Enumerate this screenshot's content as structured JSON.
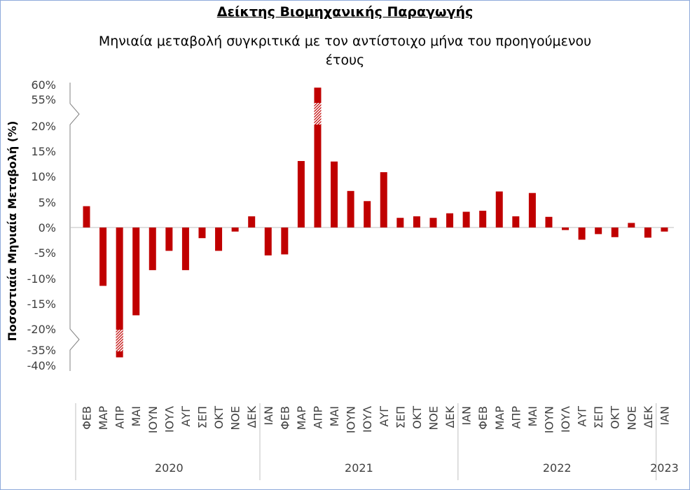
{
  "chart_data": {
    "type": "bar",
    "title": "Δείκτης Βιομηχανικής Παραγωγής",
    "subtitle": "Μηνιαία μεταβολή συγκριτικά με τον αντίστοιχο μήνα του προηγούμενου έτους",
    "ylabel": "Ποσοστιαία Μηνιαία Μεταβολή (%)",
    "y_ticks": [
      "60%",
      "55%",
      "20%",
      "15%",
      "10%",
      "5%",
      "0%",
      "-5%",
      "-10%",
      "-15%",
      "-20%",
      "-35%",
      "-40%"
    ],
    "axis_breaks": [
      [
        20,
        55
      ],
      [
        -35,
        -20
      ]
    ],
    "categories": [
      "ΦΕΒ",
      "ΜΑΡ",
      "ΑΠΡ",
      "ΜΑΙ",
      "ΙΟΥΝ",
      "ΙΟΥΛ",
      "ΑΥΓ",
      "ΣΕΠ",
      "ΟΚΤ",
      "ΝΟΕ",
      "ΔΕΚ",
      "ΙΑΝ",
      "ΦΕΒ",
      "ΜΑΡ",
      "ΑΠΡ",
      "ΜΑΙ",
      "ΙΟΥΝ",
      "ΙΟΥΛ",
      "ΑΥΓ",
      "ΣΕΠ",
      "ΟΚΤ",
      "ΝΟΕ",
      "ΔΕΚ",
      "ΙΑΝ",
      "ΦΕΒ",
      "ΜΑΡ",
      "ΑΠΡ",
      "ΜΑΙ",
      "ΙΟΥΝ",
      "ΙΟΥΛ",
      "ΑΥΓ",
      "ΣΕΠ",
      "ΟΚΤ",
      "ΝΟΕ",
      "ΔΕΚ",
      "ΙΑΝ"
    ],
    "values": [
      4.2,
      -11.5,
      -37.5,
      -17.3,
      -8.4,
      -4.6,
      -8.4,
      -2.1,
      -4.6,
      -0.8,
      2.2,
      -5.5,
      -5.3,
      13.1,
      59.0,
      13.0,
      7.2,
      5.2,
      10.9,
      1.9,
      2.2,
      1.9,
      2.8,
      3.1,
      3.3,
      7.1,
      2.2,
      6.8,
      2.1,
      -0.5,
      -2.4,
      -1.3,
      -1.9,
      0.9,
      -2.0,
      -0.8
    ],
    "years": [
      {
        "label": "2020",
        "start": 0,
        "count": 11
      },
      {
        "label": "2021",
        "start": 11,
        "count": 12
      },
      {
        "label": "2022",
        "start": 23,
        "count": 12
      },
      {
        "label": "2023",
        "start": 35,
        "count": 1
      }
    ],
    "bar_color": "#c00000",
    "grid": false,
    "legend": "none"
  }
}
